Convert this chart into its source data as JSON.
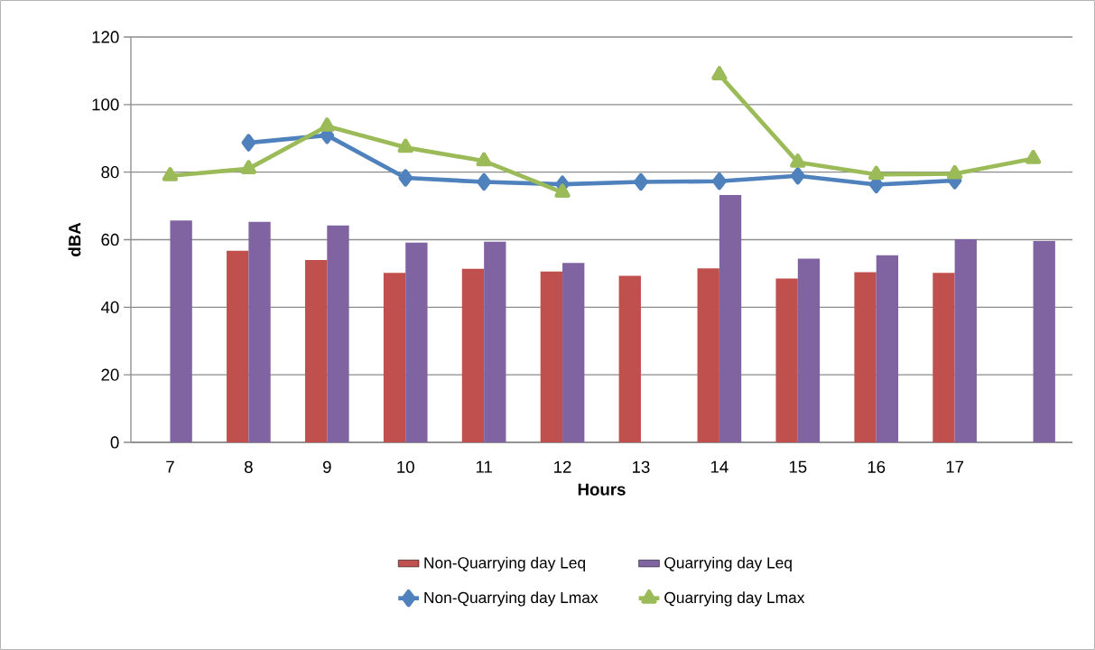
{
  "chart_data": {
    "type": "bar",
    "xlabel": "Hours",
    "ylabel": "dBA",
    "categories": [
      "7",
      "8",
      "9",
      "10",
      "11",
      "12",
      "13",
      "14",
      "15",
      "16",
      "17",
      null
    ],
    "ylim": [
      0,
      120
    ],
    "yticks": [
      0,
      20,
      40,
      60,
      80,
      100,
      120
    ],
    "grid": "y",
    "legend": "bottom",
    "series": [
      {
        "name": "Non-Quarrying day Leq",
        "color": "#c0504d",
        "values": [
          null,
          56.7,
          54.0,
          50.2,
          51.4,
          50.6,
          49.3,
          51.5,
          48.5,
          50.4,
          50.2,
          null
        ]
      },
      {
        "name": "Quarrying day Leq",
        "color": "#8064a2",
        "values": [
          65.7,
          65.3,
          64.2,
          59.1,
          59.4,
          53.1,
          null,
          73.2,
          54.4,
          55.4,
          60.1,
          59.6
        ]
      },
      {
        "name": "Non-Quarrying day Lmax",
        "type": "line",
        "color": "#4f81bd",
        "marker": "diamond",
        "values": [
          null,
          88.7,
          90.9,
          78.3,
          77.1,
          76.4,
          77.1,
          77.3,
          78.9,
          76.3,
          77.5,
          null
        ]
      },
      {
        "name": "Quarrying day Lmax",
        "type": "line",
        "color": "#9bbb59",
        "marker": "triangle",
        "values": [
          78.9,
          81.0,
          93.6,
          87.3,
          83.3,
          74.0,
          null,
          108.8,
          82.9,
          79.3,
          79.5,
          84.0
        ]
      }
    ]
  }
}
